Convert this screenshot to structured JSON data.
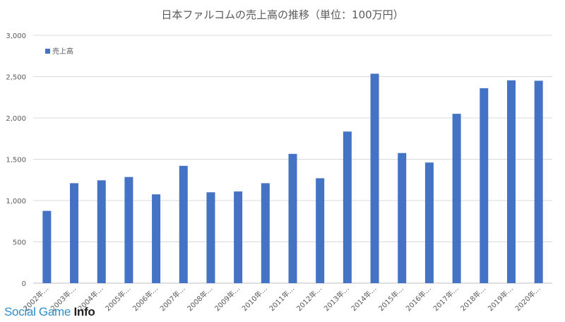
{
  "chart_data": {
    "type": "bar",
    "title": "日本ファルコムの売上高の推移（単位：100万円）",
    "categories": [
      "2002年…",
      "2003年…",
      "2004年…",
      "2005年…",
      "2006年…",
      "2007年…",
      "2008年…",
      "2009年…",
      "2010年…",
      "2011年…",
      "2012年…",
      "2013年…",
      "2014年…",
      "2015年…",
      "2016年…",
      "2017年…",
      "2018年…",
      "2019年…",
      "2020年…"
    ],
    "series": [
      {
        "name": "売上高",
        "color": "#4472c4",
        "values": [
          875,
          1210,
          1245,
          1285,
          1075,
          1420,
          1100,
          1110,
          1210,
          1565,
          1270,
          1835,
          2535,
          1575,
          1460,
          2050,
          2360,
          2455,
          2450
        ]
      }
    ],
    "yticks": [
      "0",
      "500",
      "1,000",
      "1,500",
      "2,000",
      "2,500",
      "3,000"
    ],
    "ylim": [
      0,
      3000
    ],
    "grid": true,
    "legend_position": "top-left"
  },
  "watermark": {
    "brand_text": "Social Game ",
    "brand_bold": "Info"
  }
}
